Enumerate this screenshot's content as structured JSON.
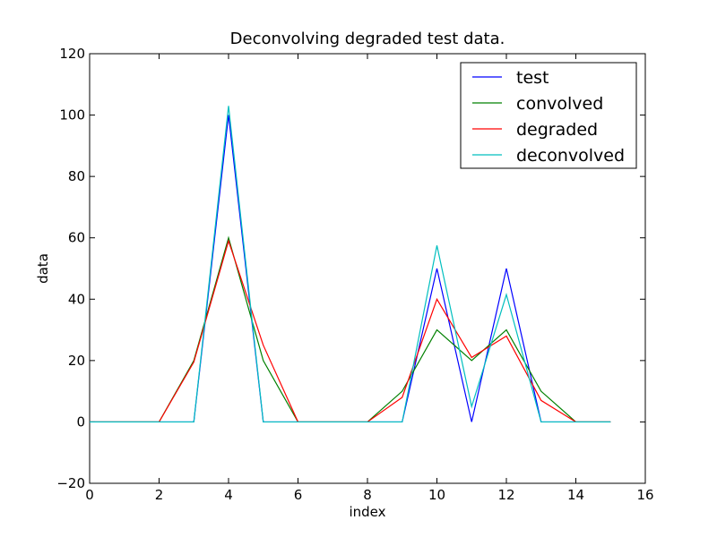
{
  "chart_data": {
    "type": "line",
    "title": "Deconvolving degraded test data.",
    "xlabel": "index",
    "ylabel": "data",
    "xlim": [
      0,
      16
    ],
    "ylim": [
      -20,
      120
    ],
    "xticks": [
      0,
      2,
      4,
      6,
      8,
      10,
      12,
      14,
      16
    ],
    "yticks": [
      -20,
      0,
      20,
      40,
      60,
      80,
      100,
      120
    ],
    "grid": false,
    "legend_position": "top-right",
    "x": [
      0,
      1,
      2,
      3,
      4,
      5,
      6,
      7,
      8,
      9,
      10,
      11,
      12,
      13,
      14,
      15
    ],
    "series": [
      {
        "name": "test",
        "color": "#0000ff",
        "values": [
          0,
          0,
          0,
          0,
          100,
          0,
          0,
          0,
          0,
          0,
          50,
          0,
          50,
          0,
          0,
          0
        ]
      },
      {
        "name": "convolved",
        "color": "#008000",
        "values": [
          0,
          0,
          0,
          20,
          60,
          20,
          0,
          0,
          0,
          10,
          30,
          20,
          30,
          10,
          0,
          0
        ]
      },
      {
        "name": "degraded",
        "color": "#ff0000",
        "values": [
          0,
          0,
          0,
          19.5,
          59,
          25,
          0,
          0,
          0,
          8,
          40,
          21,
          28,
          7,
          0,
          0
        ]
      },
      {
        "name": "deconvolved",
        "color": "#00bfbf",
        "values": [
          0,
          0,
          0,
          0,
          103,
          0,
          0,
          0,
          0,
          0,
          57.5,
          5,
          41.5,
          0,
          0,
          0
        ]
      }
    ]
  }
}
